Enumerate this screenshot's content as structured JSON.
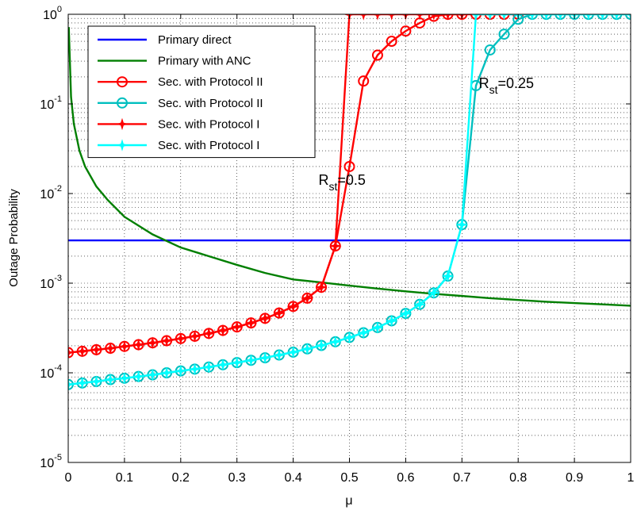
{
  "chart_data": {
    "type": "line",
    "xlabel": "μ",
    "ylabel": "Outage Probability",
    "xlim": [
      0,
      1
    ],
    "ylim_log10": [
      -5,
      0
    ],
    "yscale": "log",
    "grid": true,
    "legend_placement": "top-left",
    "x_ticks": [
      "0",
      "0.1",
      "0.2",
      "0.3",
      "0.4",
      "0.5",
      "0.6",
      "0.7",
      "0.8",
      "0.9",
      "1"
    ],
    "y_ticks": [
      {
        "base": "10",
        "exp": "-5",
        "value": 1e-05
      },
      {
        "base": "10",
        "exp": "-4",
        "value": 0.0001
      },
      {
        "base": "10",
        "exp": "-3",
        "value": 0.001
      },
      {
        "base": "10",
        "exp": "-2",
        "value": 0.01
      },
      {
        "base": "10",
        "exp": "-1",
        "value": 0.1
      },
      {
        "base": "10",
        "exp": "0",
        "value": 1
      }
    ],
    "annotations": [
      {
        "main": "R",
        "sub": "st",
        "rest": "=0.5",
        "x": 0.445,
        "y": 0.0125
      },
      {
        "main": "R",
        "sub": "st",
        "rest": "=0.25",
        "x": 0.73,
        "y": 0.15
      }
    ],
    "series": [
      {
        "name": "Primary direct",
        "color": "#0000ff",
        "marker": "none",
        "x": [
          0,
          1
        ],
        "y": [
          0.003,
          0.003
        ]
      },
      {
        "name": "Primary with ANC",
        "color": "#007f00",
        "marker": "none",
        "x": [
          0.001,
          0.005,
          0.01,
          0.02,
          0.03,
          0.05,
          0.07,
          0.1,
          0.15,
          0.2,
          0.25,
          0.3,
          0.35,
          0.4,
          0.45,
          0.5,
          0.55,
          0.6,
          0.65,
          0.7,
          0.75,
          0.8,
          0.85,
          0.9,
          0.95,
          1.0
        ],
        "y": [
          0.72,
          0.12,
          0.06,
          0.03,
          0.02,
          0.012,
          0.0085,
          0.0055,
          0.0035,
          0.0025,
          0.002,
          0.0016,
          0.0013,
          0.0011,
          0.00102,
          0.00094,
          0.00087,
          0.00081,
          0.00076,
          0.00072,
          0.00068,
          0.00065,
          0.00062,
          0.0006,
          0.00058,
          0.00056
        ]
      },
      {
        "name": "Sec. with Protocol II",
        "color": "#ff0000",
        "marker": "circle",
        "x": [
          0,
          0.025,
          0.05,
          0.075,
          0.1,
          0.125,
          0.15,
          0.175,
          0.2,
          0.225,
          0.25,
          0.275,
          0.3,
          0.325,
          0.35,
          0.375,
          0.4,
          0.425,
          0.45,
          0.475,
          0.5,
          0.525,
          0.55,
          0.575,
          0.6,
          0.625,
          0.65,
          0.675,
          0.7,
          0.725,
          0.75,
          0.775,
          0.8
        ],
        "y": [
          0.000168,
          0.000174,
          0.000181,
          0.000188,
          0.000197,
          0.000206,
          0.000216,
          0.000228,
          0.000241,
          0.000256,
          0.000275,
          0.000297,
          0.000325,
          0.00036,
          0.000405,
          0.000465,
          0.00055,
          0.00068,
          0.0009,
          0.0026,
          0.02,
          0.18,
          0.35,
          0.5,
          0.65,
          0.8,
          0.95,
          1,
          1,
          1,
          1,
          1,
          1
        ]
      },
      {
        "name": "Sec. with Protocol II",
        "color": "#00bfbf",
        "marker": "circle",
        "x": [
          0,
          0.025,
          0.05,
          0.075,
          0.1,
          0.125,
          0.15,
          0.175,
          0.2,
          0.225,
          0.25,
          0.275,
          0.3,
          0.325,
          0.35,
          0.375,
          0.4,
          0.425,
          0.45,
          0.475,
          0.5,
          0.525,
          0.55,
          0.575,
          0.6,
          0.625,
          0.65,
          0.675,
          0.7,
          0.725,
          0.75,
          0.775,
          0.8,
          0.825,
          0.85,
          0.875,
          0.9,
          0.925,
          0.95,
          0.975,
          1.0
        ],
        "y": [
          7.4e-05,
          7.7e-05,
          8e-05,
          8.4e-05,
          8.7e-05,
          9.1e-05,
          9.5e-05,
          0.0001,
          0.000105,
          0.00011,
          0.000116,
          0.000123,
          0.00013,
          0.000138,
          0.000147,
          0.000158,
          0.00017,
          0.000185,
          0.000202,
          0.000222,
          0.000248,
          0.00028,
          0.00032,
          0.00038,
          0.00046,
          0.00058,
          0.00078,
          0.0012,
          0.0045,
          0.16,
          0.4,
          0.6,
          0.88,
          1,
          1,
          1,
          1,
          1,
          1,
          1,
          1
        ]
      },
      {
        "name": "Sec. with Protocol I",
        "color": "#ff0000",
        "marker": "star",
        "x": [
          0,
          0.025,
          0.05,
          0.075,
          0.1,
          0.125,
          0.15,
          0.175,
          0.2,
          0.225,
          0.25,
          0.275,
          0.3,
          0.325,
          0.35,
          0.375,
          0.4,
          0.425,
          0.45,
          0.475,
          0.5,
          0.525,
          0.55,
          0.575,
          0.6,
          0.625,
          0.65,
          0.675,
          0.7
        ],
        "y": [
          0.000168,
          0.000174,
          0.000181,
          0.000188,
          0.000197,
          0.000206,
          0.000216,
          0.000228,
          0.000241,
          0.000256,
          0.000275,
          0.000297,
          0.000325,
          0.00036,
          0.000405,
          0.000465,
          0.00055,
          0.00068,
          0.0009,
          0.0026,
          1,
          1,
          1,
          1,
          1,
          1,
          1,
          1,
          1
        ]
      },
      {
        "name": "Sec. with Protocol I",
        "color": "#00ffff",
        "marker": "star",
        "x": [
          0,
          0.025,
          0.05,
          0.075,
          0.1,
          0.125,
          0.15,
          0.175,
          0.2,
          0.225,
          0.25,
          0.275,
          0.3,
          0.325,
          0.35,
          0.375,
          0.4,
          0.425,
          0.45,
          0.475,
          0.5,
          0.525,
          0.55,
          0.575,
          0.6,
          0.625,
          0.65,
          0.675,
          0.7,
          0.725,
          0.75,
          0.775,
          0.8,
          0.825,
          0.85,
          0.875,
          0.9,
          0.925,
          0.95,
          0.975,
          1.0
        ],
        "y": [
          7.4e-05,
          7.7e-05,
          8e-05,
          8.4e-05,
          8.7e-05,
          9.1e-05,
          9.5e-05,
          0.0001,
          0.000105,
          0.00011,
          0.000116,
          0.000123,
          0.00013,
          0.000138,
          0.000147,
          0.000158,
          0.00017,
          0.000185,
          0.000202,
          0.000222,
          0.000248,
          0.00028,
          0.00032,
          0.00038,
          0.00046,
          0.00058,
          0.00078,
          0.0012,
          0.0045,
          1,
          1,
          1,
          1,
          1,
          1,
          1,
          1,
          1,
          1,
          1,
          1
        ]
      }
    ]
  }
}
